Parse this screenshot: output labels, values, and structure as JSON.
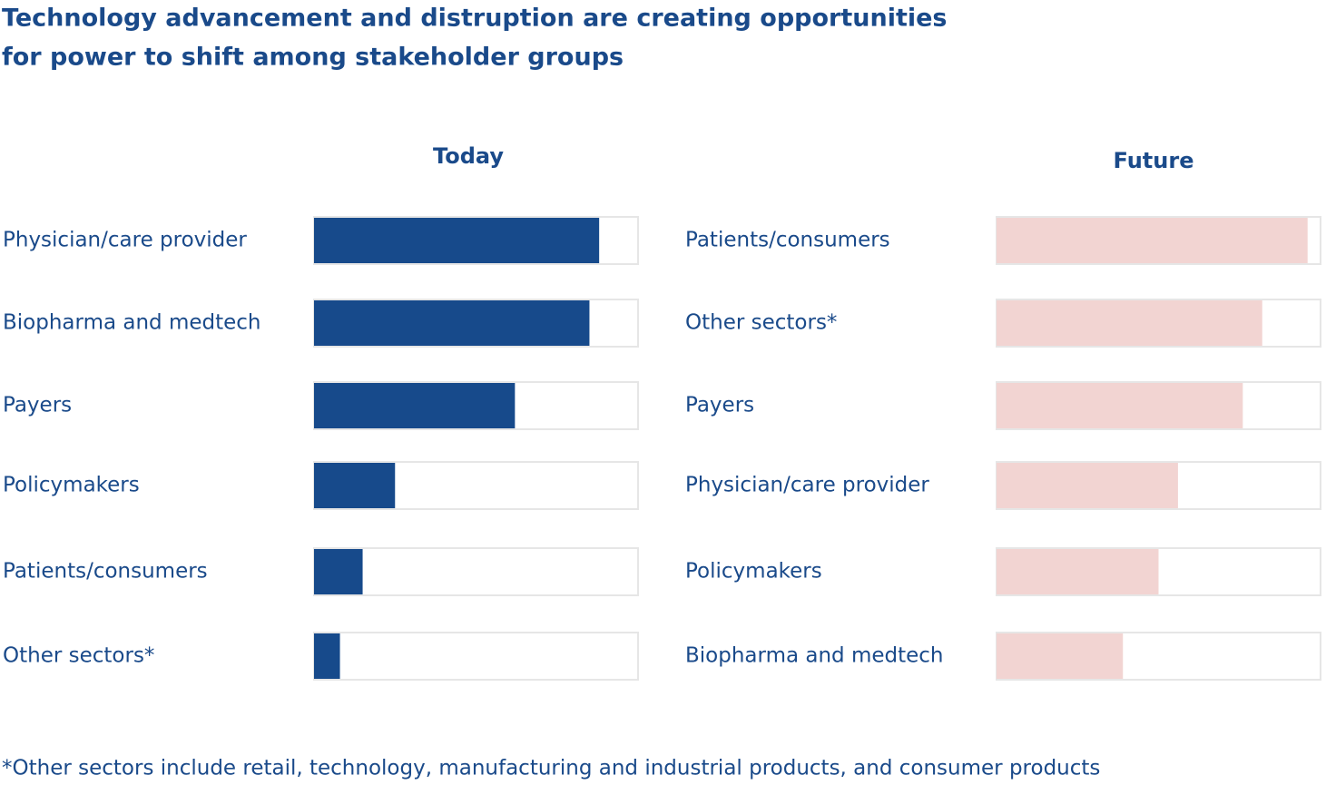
{
  "title": [
    "Technology advancement and distruption are creating opportunities",
    "for power to shift among stakeholder groups"
  ],
  "footnote": "*Other sectors include retail, technology, manufacturing and industrial products, and consumer products",
  "chart_data": [
    {
      "type": "bar",
      "orientation": "horizontal",
      "title": "Today",
      "categories": [
        "Physician/care provider",
        "Biopharma and medtech",
        "Payers",
        "Policymakers",
        "Patients/consumers",
        "Other sectors*"
      ],
      "values": [
        88,
        85,
        62,
        25,
        15,
        8
      ],
      "color": "#174a8b",
      "xlim": [
        0,
        100
      ]
    },
    {
      "type": "bar",
      "orientation": "horizontal",
      "title": "Future",
      "categories": [
        "Patients/consumers",
        "Other sectors*",
        "Payers",
        "Physician/care provider",
        "Policymakers",
        "Biopharma and medtech"
      ],
      "values": [
        96,
        82,
        76,
        56,
        50,
        39
      ],
      "color": "#f2d4d2",
      "xlim": [
        0,
        100
      ]
    }
  ]
}
